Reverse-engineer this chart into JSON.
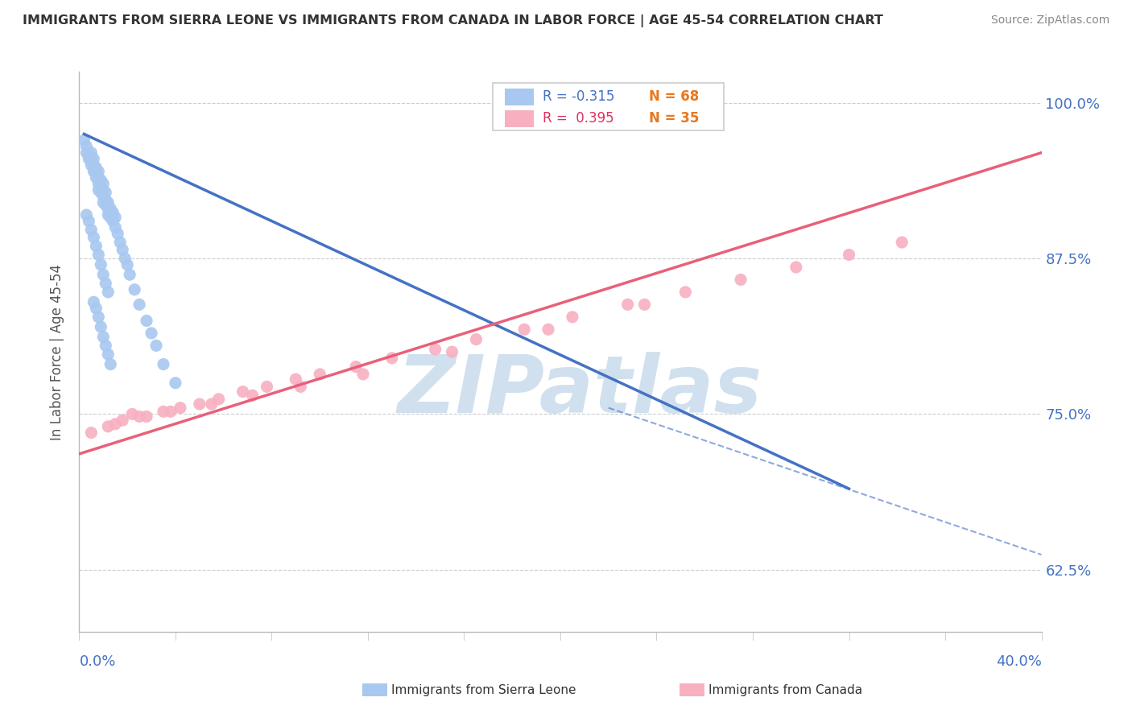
{
  "title": "IMMIGRANTS FROM SIERRA LEONE VS IMMIGRANTS FROM CANADA IN LABOR FORCE | AGE 45-54 CORRELATION CHART",
  "source": "Source: ZipAtlas.com",
  "ylabel": "In Labor Force | Age 45-54",
  "xlim": [
    0.0,
    0.4
  ],
  "ylim": [
    0.575,
    1.025
  ],
  "legend_r1": "R = -0.315",
  "legend_n1": "N = 68",
  "legend_r2": "R =  0.395",
  "legend_n2": "N = 35",
  "sierra_leone_color": "#A8C8F0",
  "canada_color": "#F8B0C0",
  "sierra_leone_line_color": "#4472C4",
  "canada_line_color": "#E8607A",
  "background_color": "#FFFFFF",
  "watermark": "ZIPatlas",
  "watermark_color": "#D0E0EE",
  "title_color": "#333333",
  "source_color": "#888888",
  "axis_color": "#BBBBBB",
  "tick_color": "#4472C4",
  "legend_r_color1": "#4472C4",
  "legend_n_color1": "#E87820",
  "legend_r_color2": "#E03060",
  "legend_n_color2": "#E87820",
  "sierra_leone_scatter_x": [
    0.002,
    0.003,
    0.003,
    0.004,
    0.004,
    0.005,
    0.005,
    0.005,
    0.006,
    0.006,
    0.006,
    0.007,
    0.007,
    0.007,
    0.008,
    0.008,
    0.008,
    0.008,
    0.009,
    0.009,
    0.009,
    0.01,
    0.01,
    0.01,
    0.01,
    0.011,
    0.011,
    0.011,
    0.012,
    0.012,
    0.012,
    0.013,
    0.013,
    0.014,
    0.014,
    0.015,
    0.015,
    0.016,
    0.017,
    0.018,
    0.019,
    0.02,
    0.021,
    0.023,
    0.025,
    0.028,
    0.03,
    0.032,
    0.035,
    0.04,
    0.003,
    0.004,
    0.005,
    0.006,
    0.007,
    0.008,
    0.009,
    0.01,
    0.011,
    0.012,
    0.006,
    0.007,
    0.008,
    0.009,
    0.01,
    0.011,
    0.012,
    0.013
  ],
  "sierra_leone_scatter_y": [
    0.97,
    0.965,
    0.96,
    0.958,
    0.955,
    0.96,
    0.955,
    0.95,
    0.955,
    0.95,
    0.945,
    0.948,
    0.945,
    0.94,
    0.945,
    0.94,
    0.935,
    0.93,
    0.938,
    0.932,
    0.928,
    0.935,
    0.93,
    0.925,
    0.92,
    0.928,
    0.922,
    0.918,
    0.92,
    0.915,
    0.91,
    0.915,
    0.908,
    0.912,
    0.905,
    0.908,
    0.9,
    0.895,
    0.888,
    0.882,
    0.875,
    0.87,
    0.862,
    0.85,
    0.838,
    0.825,
    0.815,
    0.805,
    0.79,
    0.775,
    0.91,
    0.905,
    0.898,
    0.892,
    0.885,
    0.878,
    0.87,
    0.862,
    0.855,
    0.848,
    0.84,
    0.835,
    0.828,
    0.82,
    0.812,
    0.805,
    0.798,
    0.79
  ],
  "canada_scatter_x": [
    0.012,
    0.018,
    0.022,
    0.028,
    0.035,
    0.042,
    0.05,
    0.058,
    0.068,
    0.078,
    0.09,
    0.1,
    0.115,
    0.13,
    0.148,
    0.165,
    0.185,
    0.205,
    0.228,
    0.252,
    0.275,
    0.298,
    0.32,
    0.342,
    0.005,
    0.015,
    0.025,
    0.038,
    0.055,
    0.072,
    0.092,
    0.118,
    0.155,
    0.195,
    0.235
  ],
  "canada_scatter_y": [
    0.74,
    0.745,
    0.75,
    0.748,
    0.752,
    0.755,
    0.758,
    0.762,
    0.768,
    0.772,
    0.778,
    0.782,
    0.788,
    0.795,
    0.802,
    0.81,
    0.818,
    0.828,
    0.838,
    0.848,
    0.858,
    0.868,
    0.878,
    0.888,
    0.735,
    0.742,
    0.748,
    0.752,
    0.758,
    0.765,
    0.772,
    0.782,
    0.8,
    0.818,
    0.838
  ],
  "sierra_leone_trend_x": [
    0.002,
    0.32
  ],
  "sierra_leone_trend_y": [
    0.975,
    0.69
  ],
  "canada_trend_x": [
    0.0,
    0.4
  ],
  "canada_trend_y": [
    0.718,
    0.96
  ]
}
